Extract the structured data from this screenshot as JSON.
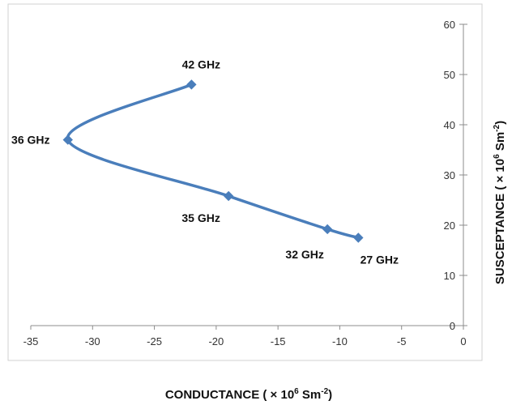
{
  "chart_data": {
    "type": "line",
    "xlabel": "CONDUCTANCE ( × 10",
    "xlabel_sup": "6",
    "xlabel_unit": " Sm",
    "xlabel_unit_sup": "-2",
    "xlabel_end": ")",
    "ylabel": "SUSCEPTANCE ( × 10",
    "ylabel_sup": "6",
    "ylabel_unit": " Sm",
    "ylabel_unit_sup": "-2",
    "ylabel_end": ")",
    "xlim": [
      -35,
      0
    ],
    "ylim": [
      0,
      60
    ],
    "x_ticks": [
      "-35",
      "-30",
      "-25",
      "-20",
      "-15",
      "-10",
      "-5",
      "0"
    ],
    "y_ticks": [
      "0",
      "10",
      "20",
      "30",
      "40",
      "50",
      "60"
    ],
    "y_axis_position": "right",
    "grid": false,
    "legend": "none",
    "series": [
      {
        "color": "#4a7ebb",
        "points": [
          {
            "x": -8.5,
            "y": 17.5,
            "label": "27 GHz"
          },
          {
            "x": -11,
            "y": 19.2,
            "label": "32 GHz"
          },
          {
            "x": -19,
            "y": 25.8,
            "label": "35 GHz"
          },
          {
            "x": -32,
            "y": 37,
            "label": "36 GHz"
          },
          {
            "x": -22,
            "y": 48,
            "label": "42 GHz"
          }
        ]
      }
    ]
  }
}
